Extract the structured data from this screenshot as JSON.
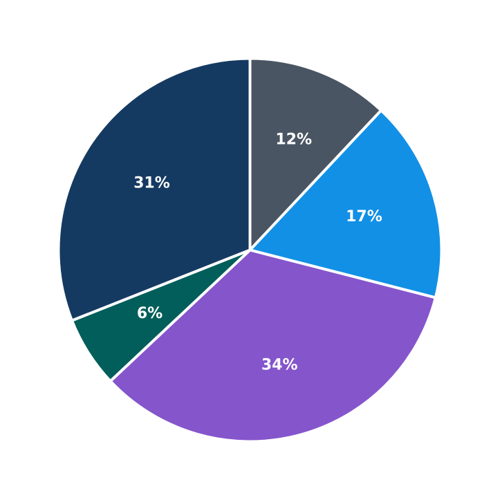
{
  "chart_data": {
    "type": "pie",
    "start_angle": "12 o'clock",
    "direction": "clockwise",
    "slices": [
      {
        "value": 12,
        "label": "12%",
        "color": "#4a5563"
      },
      {
        "value": 17,
        "label": "17%",
        "color": "#1290e6"
      },
      {
        "value": 34,
        "label": "34%",
        "color": "#8555cc"
      },
      {
        "value": 6,
        "label": "6%",
        "color": "#025e5a"
      },
      {
        "value": 31,
        "label": "31%",
        "color": "#153a62"
      }
    ]
  }
}
